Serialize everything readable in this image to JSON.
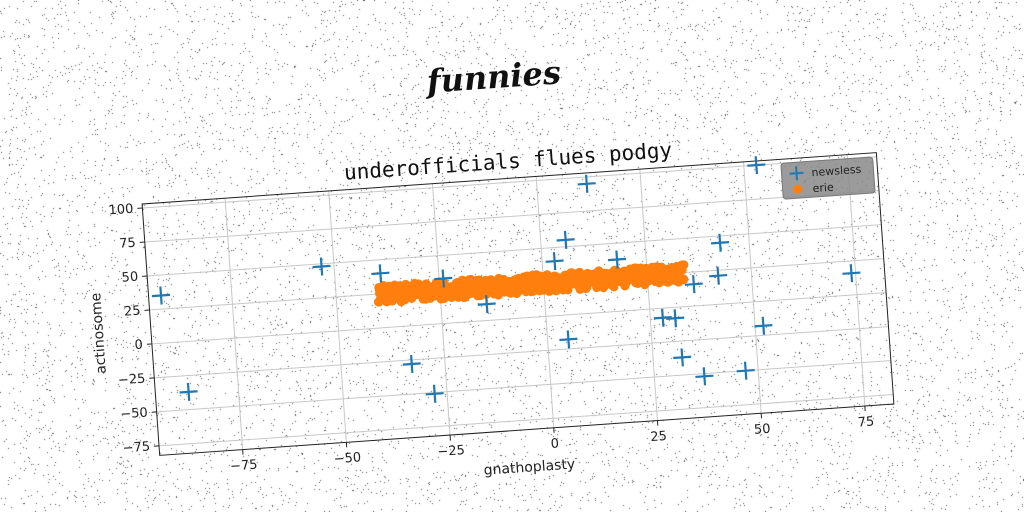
{
  "figure": {
    "suptitle": "funnies"
  },
  "chart_data": {
    "type": "scatter",
    "title": "underofficials flues podgy",
    "xlabel": "gnathoplasty",
    "ylabel": "actinosome",
    "xlim": [
      -95,
      82
    ],
    "ylim": [
      -82,
      103
    ],
    "xticks": [
      -75,
      -50,
      -25,
      0,
      25,
      50,
      75
    ],
    "yticks": [
      -75,
      -50,
      -25,
      0,
      25,
      50,
      75,
      100
    ],
    "xtick_labels": [
      "−75",
      "−50",
      "−25",
      "0",
      "25",
      "50",
      "75"
    ],
    "ytick_labels": [
      "−75",
      "−50",
      "−25",
      "0",
      "25",
      "50",
      "75",
      "100"
    ],
    "grid": true,
    "legend": {
      "position": "top-right"
    },
    "series": [
      {
        "name": "newsless",
        "marker": "+",
        "color": "#1f77b4",
        "points": [
          [
            -92,
            35
          ],
          [
            -87,
            -37
          ],
          [
            -53,
            48
          ],
          [
            -39,
            40
          ],
          [
            -33,
            -28
          ],
          [
            -28,
            -51
          ],
          [
            -24,
            33
          ],
          [
            -14,
            12
          ],
          [
            3,
            40
          ],
          [
            5,
            -18
          ],
          [
            6,
            55
          ],
          [
            12,
            95
          ],
          [
            18,
            38
          ],
          [
            28,
            -7
          ],
          [
            31,
            -8
          ],
          [
            32,
            -37
          ],
          [
            36,
            16
          ],
          [
            37,
            -52
          ],
          [
            42,
            21
          ],
          [
            43,
            45
          ],
          [
            47,
            -50
          ],
          [
            52,
            -18
          ],
          [
            53,
            100
          ],
          [
            74,
            16
          ]
        ]
      },
      {
        "name": "erie",
        "marker": "o",
        "color": "#ff7f0e",
        "x_range": [
          -40,
          34
        ],
        "y_range": [
          18,
          31
        ],
        "count": 600
      }
    ]
  }
}
